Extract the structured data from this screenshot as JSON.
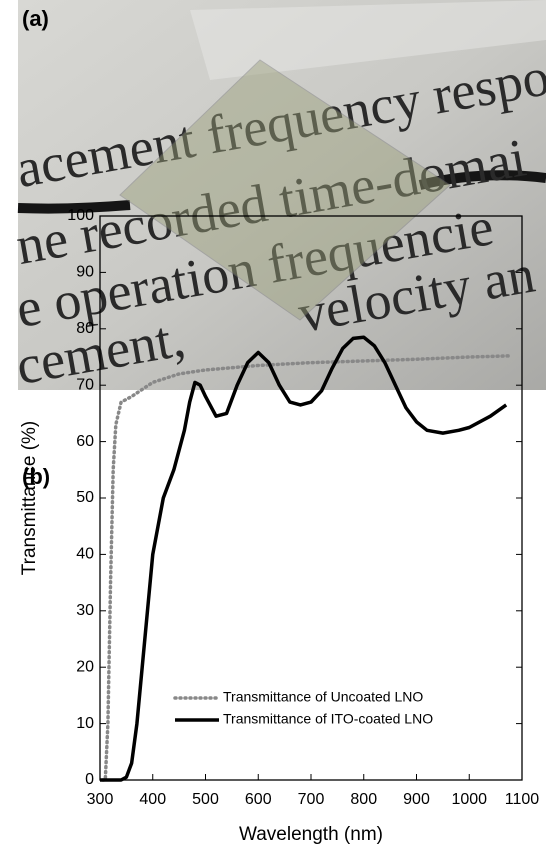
{
  "photo": {
    "label": "(a)",
    "text_lines": [
      "acement frequency respo",
      "ne recorded time-domai",
      "e operation frequencie",
      "velocity an",
      "cement,"
    ]
  },
  "chart_data": {
    "type": "line",
    "label": "(b)",
    "x_label": "Wavelength (nm)",
    "y_label": "Transmittance (%)",
    "xlim": [
      300,
      1100
    ],
    "ylim": [
      0,
      100
    ],
    "xticks": [
      300,
      400,
      500,
      600,
      700,
      800,
      900,
      1000,
      1100
    ],
    "yticks": [
      0,
      10,
      20,
      30,
      40,
      50,
      60,
      70,
      80,
      90,
      100
    ],
    "legend": "lower-right",
    "series": [
      {
        "name": "Transmittance of Uncoated LNO",
        "color": "#888888",
        "style": "dotted",
        "x": [
          305,
          310,
          315,
          320,
          325,
          330,
          340,
          360,
          400,
          450,
          500,
          600,
          700,
          800,
          900,
          1000,
          1075
        ],
        "values": [
          0,
          0,
          10,
          35,
          55,
          63,
          67,
          68,
          70.5,
          72,
          72.7,
          73.5,
          74,
          74.3,
          74.6,
          75,
          75.2
        ]
      },
      {
        "name": "Transmittance of ITO-coated LNO",
        "color": "#000000",
        "style": "solid",
        "x": [
          300,
          340,
          350,
          360,
          370,
          380,
          390,
          400,
          420,
          440,
          460,
          470,
          480,
          490,
          500,
          520,
          540,
          560,
          580,
          600,
          620,
          640,
          660,
          680,
          700,
          720,
          740,
          760,
          780,
          800,
          820,
          840,
          860,
          880,
          900,
          920,
          950,
          980,
          1000,
          1040,
          1070
        ],
        "values": [
          0,
          0,
          0.5,
          3,
          10,
          20,
          30,
          40,
          50,
          55,
          62,
          67,
          70.5,
          70,
          68,
          64.5,
          65,
          70,
          74,
          75.8,
          74,
          70,
          67,
          66.5,
          67,
          69,
          73,
          76.5,
          78.3,
          78.5,
          77,
          74,
          70,
          66,
          63.5,
          62,
          61.5,
          62,
          62.5,
          64.5,
          66.5
        ]
      }
    ]
  }
}
